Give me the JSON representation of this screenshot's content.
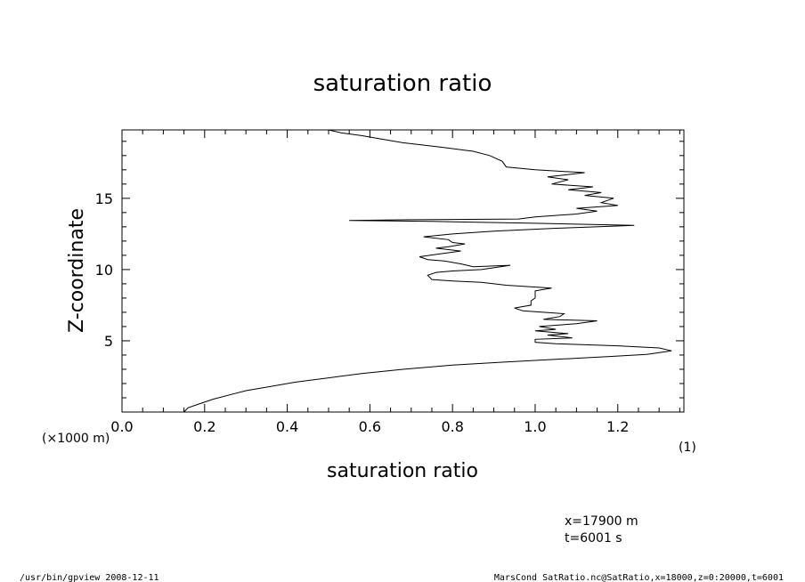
{
  "chart_data": {
    "type": "line",
    "title": "saturation ratio",
    "xlabel": "saturation ratio",
    "ylabel": "Z-coordinate",
    "y_scale_note": "(×1000 m)",
    "x_unit_note": "(1)",
    "xlim": [
      0.0,
      1.36
    ],
    "ylim": [
      0,
      19.8
    ],
    "x_ticks": [
      "0.0",
      "0.2",
      "0.4",
      "0.6",
      "0.8",
      "1.0",
      "1.2"
    ],
    "x_tick_values": [
      0.0,
      0.2,
      0.4,
      0.6,
      0.8,
      1.0,
      1.2
    ],
    "y_ticks": [
      "5",
      "10",
      "15"
    ],
    "y_tick_values": [
      5,
      10,
      15
    ],
    "series": [
      {
        "points": [
          [
            0.15,
            0.0
          ],
          [
            0.16,
            0.3
          ],
          [
            0.19,
            0.6
          ],
          [
            0.22,
            0.9
          ],
          [
            0.26,
            1.2
          ],
          [
            0.3,
            1.5
          ],
          [
            0.36,
            1.8
          ],
          [
            0.42,
            2.1
          ],
          [
            0.5,
            2.4
          ],
          [
            0.58,
            2.7
          ],
          [
            0.68,
            3.0
          ],
          [
            0.8,
            3.3
          ],
          [
            0.92,
            3.5
          ],
          [
            1.05,
            3.7
          ],
          [
            1.18,
            3.9
          ],
          [
            1.27,
            4.05
          ],
          [
            1.33,
            4.3
          ],
          [
            1.3,
            4.5
          ],
          [
            1.2,
            4.65
          ],
          [
            1.05,
            4.8
          ],
          [
            1.0,
            4.9
          ],
          [
            1.0,
            5.1
          ],
          [
            1.09,
            5.2
          ],
          [
            1.03,
            5.4
          ],
          [
            1.08,
            5.5
          ],
          [
            1.0,
            5.7
          ],
          [
            1.05,
            5.8
          ],
          [
            1.01,
            6.0
          ],
          [
            1.1,
            6.2
          ],
          [
            1.15,
            6.4
          ],
          [
            1.02,
            6.5
          ],
          [
            1.06,
            6.7
          ],
          [
            1.07,
            6.9
          ],
          [
            0.97,
            7.1
          ],
          [
            0.95,
            7.3
          ],
          [
            0.99,
            7.5
          ],
          [
            0.99,
            7.8
          ],
          [
            1.0,
            8.0
          ],
          [
            1.0,
            8.5
          ],
          [
            1.02,
            8.6
          ],
          [
            1.04,
            8.7
          ],
          [
            0.93,
            8.9
          ],
          [
            0.9,
            9.0
          ],
          [
            0.87,
            9.1
          ],
          [
            0.8,
            9.2
          ],
          [
            0.75,
            9.3
          ],
          [
            0.74,
            9.6
          ],
          [
            0.76,
            9.8
          ],
          [
            0.8,
            9.9
          ],
          [
            0.87,
            10.0
          ],
          [
            0.94,
            10.3
          ],
          [
            0.85,
            10.2
          ],
          [
            0.82,
            10.4
          ],
          [
            0.78,
            10.6
          ],
          [
            0.74,
            10.7
          ],
          [
            0.72,
            10.9
          ],
          [
            0.77,
            11.1
          ],
          [
            0.82,
            11.3
          ],
          [
            0.76,
            11.5
          ],
          [
            0.79,
            11.6
          ],
          [
            0.83,
            11.8
          ],
          [
            0.8,
            11.9
          ],
          [
            0.79,
            12.1
          ],
          [
            0.73,
            12.3
          ],
          [
            0.8,
            12.5
          ],
          [
            0.9,
            12.7
          ],
          [
            1.05,
            12.9
          ],
          [
            1.24,
            13.1
          ],
          [
            1.0,
            13.25
          ],
          [
            0.75,
            13.38
          ],
          [
            0.55,
            13.45
          ],
          [
            0.7,
            13.5
          ],
          [
            0.96,
            13.55
          ],
          [
            1.0,
            13.7
          ],
          [
            1.1,
            13.9
          ],
          [
            1.15,
            14.1
          ],
          [
            1.1,
            14.3
          ],
          [
            1.2,
            14.5
          ],
          [
            1.16,
            14.7
          ],
          [
            1.19,
            15.0
          ],
          [
            1.12,
            15.2
          ],
          [
            1.16,
            15.4
          ],
          [
            1.08,
            15.6
          ],
          [
            1.14,
            15.8
          ],
          [
            1.04,
            16.0
          ],
          [
            1.08,
            16.3
          ],
          [
            1.03,
            16.5
          ],
          [
            1.12,
            16.8
          ],
          [
            1.0,
            17.0
          ],
          [
            0.93,
            17.2
          ],
          [
            0.92,
            17.6
          ],
          [
            0.89,
            18.0
          ],
          [
            0.85,
            18.3
          ],
          [
            0.77,
            18.6
          ],
          [
            0.68,
            18.9
          ],
          [
            0.62,
            19.2
          ],
          [
            0.58,
            19.4
          ],
          [
            0.53,
            19.6
          ],
          [
            0.5,
            19.8
          ]
        ]
      }
    ],
    "grid": false,
    "annotations": [
      "x=17900  m",
      "t=6001  s"
    ]
  },
  "footer": {
    "left": "/usr/bin/gpview   2008-12-11",
    "right": "MarsCond_SatRatio.nc@SatRatio,x=18000,z=0:20000,t=6001"
  }
}
